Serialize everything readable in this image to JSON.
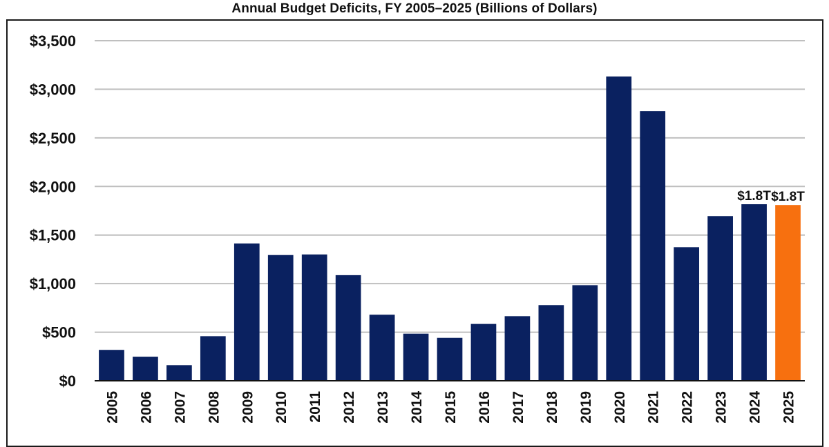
{
  "chart_data": {
    "type": "bar",
    "title": "Annual Budget Deficits, FY 2005–2025 (Billions of Dollars)",
    "xlabel": "",
    "ylabel": "",
    "ylim": [
      0,
      3500
    ],
    "grid": true,
    "legend": null,
    "y_ticks": [
      {
        "value": 0,
        "label": "$0"
      },
      {
        "value": 500,
        "label": "$500"
      },
      {
        "value": 1000,
        "label": "$1,000"
      },
      {
        "value": 1500,
        "label": "$1,500"
      },
      {
        "value": 2000,
        "label": "$2,000"
      },
      {
        "value": 2500,
        "label": "$2,500"
      },
      {
        "value": 3000,
        "label": "$3,000"
      },
      {
        "value": 3500,
        "label": "$3,500"
      }
    ],
    "categories": [
      "2005",
      "2006",
      "2007",
      "2008",
      "2009",
      "2010",
      "2011",
      "2012",
      "2013",
      "2014",
      "2015",
      "2016",
      "2017",
      "2018",
      "2019",
      "2020",
      "2021",
      "2022",
      "2023",
      "2024",
      "2025"
    ],
    "values": [
      318,
      248,
      161,
      459,
      1413,
      1294,
      1300,
      1087,
      680,
      485,
      442,
      585,
      665,
      779,
      984,
      3132,
      2775,
      1375,
      1695,
      1817,
      1809
    ],
    "colors": {
      "default": "#0A2160",
      "highlight": "#F7700F",
      "gridline": "#BFBFBF",
      "axis": "#111111"
    },
    "highlight_categories": [
      "2025"
    ],
    "annotations": [
      {
        "category": "2024",
        "text": "$1.8T"
      },
      {
        "category": "2025",
        "text": "$1.8T"
      }
    ]
  }
}
